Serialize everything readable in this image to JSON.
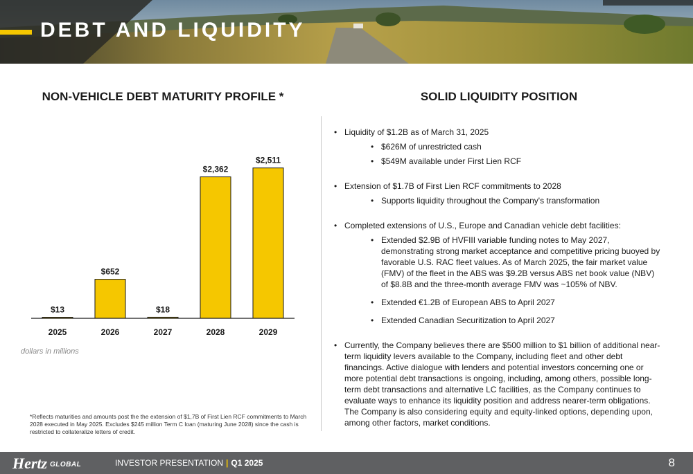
{
  "header": {
    "title": "DEBT AND LIQUIDITY"
  },
  "left": {
    "heading": "NON-VEHICLE DEBT MATURITY PROFILE *",
    "note": "dollars in millions",
    "footnote": "*Reflects maturities and amounts post the the extension of $1,7B of First Lien RCF commitments to March 2028 executed in May 2025. Excludes $245 million Term C loan (maturing June 2028) since the cash is restricted to collateralize letters of credit."
  },
  "chart_data": {
    "type": "bar",
    "categories": [
      "2025",
      "2026",
      "2027",
      "2028",
      "2029"
    ],
    "values": [
      13,
      652,
      18,
      2362,
      2511
    ],
    "value_labels": [
      "$13",
      "$652",
      "$18",
      "$2,362",
      "$2,511"
    ],
    "ylim": [
      0,
      2600
    ],
    "grid": false,
    "bar_color": "#f5c700"
  },
  "right": {
    "heading": "SOLID LIQUIDITY POSITION",
    "b1": "Liquidity of $1.2B as of March 31, 2025",
    "b1_1": "$626M of unrestricted cash",
    "b1_2": "$549M available under First Lien RCF",
    "b2": "Extension of $1.7B of First Lien RCF commitments to 2028",
    "b2_1": "Supports liquidity throughout the Company's transformation",
    "b3": "Completed extensions of U.S., Europe and Canadian vehicle debt facilities:",
    "b3_1": "Extended $2.9B of HVFIII variable funding notes to May 2027, demonstrating strong market acceptance and competitive pricing buoyed by favorable U.S. RAC fleet values. As of March 2025, the fair market value (FMV) of the fleet in the ABS was $9.2B versus ABS net book value (NBV) of $8.8B and the three-month average FMV was ~105% of NBV.",
    "b3_2": "Extended €1.2B of European ABS to April 2027",
    "b3_3": "Extended Canadian Securitization to April 2027",
    "b4": "Currently, the Company believes there are $500 million to $1 billion of additional near-term liquidity levers available to the Company, including fleet and other debt financings. Active dialogue with lenders and potential investors concerning one or more potential debt transactions is ongoing, including, among others, possible long-term debt transactions and alternative LC facilities, as the Company continues to evaluate ways to enhance its liquidity position and address nearer-term obligations. The Company is also considering equity and equity-linked options, depending upon, among other factors, market conditions."
  },
  "footer": {
    "logo": "Hertz",
    "logo_sub": "GLOBAL",
    "presentation": "INVESTOR PRESENTATION",
    "separator": "|",
    "quarter": "Q1 2025",
    "page_number": "8"
  },
  "colors": {
    "accent": "#f5c700",
    "footer_bg": "#5f6062"
  }
}
